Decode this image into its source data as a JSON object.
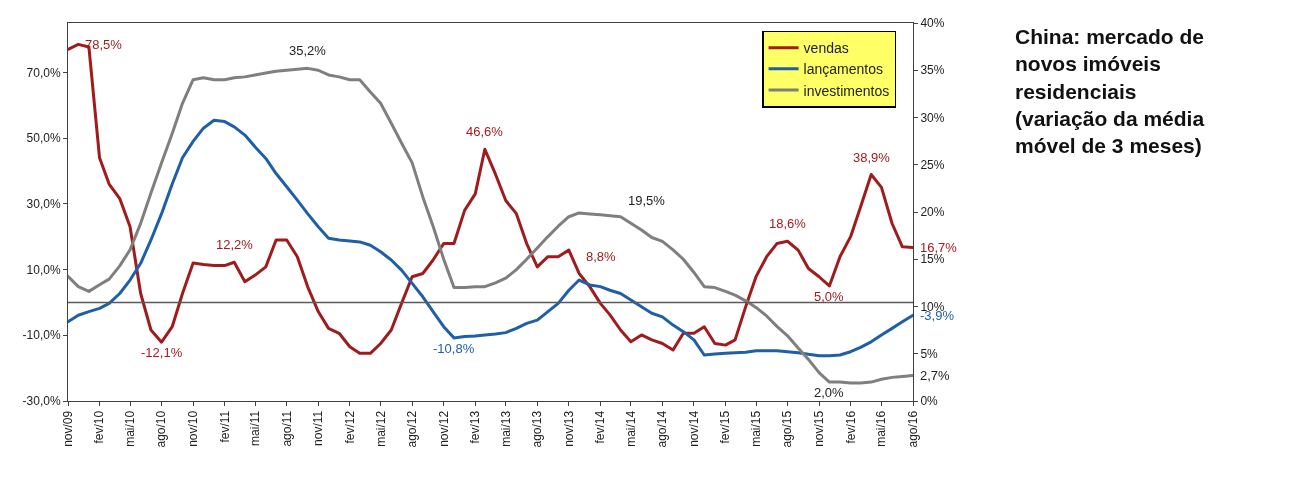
{
  "chart_data": {
    "type": "line",
    "title": "China: mercado de novos imóveis residenciais (variação da média móvel de 3 meses)",
    "x": [
      "2009-11",
      "2009-12",
      "2010-01",
      "2010-02",
      "2010-03",
      "2010-04",
      "2010-05",
      "2010-06",
      "2010-07",
      "2010-08",
      "2010-09",
      "2010-10",
      "2010-11",
      "2010-12",
      "2011-01",
      "2011-02",
      "2011-03",
      "2011-04",
      "2011-05",
      "2011-06",
      "2011-07",
      "2011-08",
      "2011-09",
      "2011-10",
      "2011-11",
      "2011-12",
      "2012-01",
      "2012-02",
      "2012-03",
      "2012-04",
      "2012-05",
      "2012-06",
      "2012-07",
      "2012-08",
      "2012-09",
      "2012-10",
      "2012-11",
      "2012-12",
      "2013-01",
      "2013-02",
      "2013-03",
      "2013-04",
      "2013-05",
      "2013-06",
      "2013-07",
      "2013-08",
      "2013-09",
      "2013-10",
      "2013-11",
      "2013-12",
      "2014-01",
      "2014-02",
      "2014-03",
      "2014-04",
      "2014-05",
      "2014-06",
      "2014-07",
      "2014-08",
      "2014-09",
      "2014-10",
      "2014-11",
      "2014-12",
      "2015-01",
      "2015-02",
      "2015-03",
      "2015-04",
      "2015-05",
      "2015-06",
      "2015-07",
      "2015-08",
      "2015-09",
      "2015-10",
      "2015-11",
      "2015-12",
      "2016-01",
      "2016-02",
      "2016-03",
      "2016-04",
      "2016-05",
      "2016-06",
      "2016-07",
      "2016-08"
    ],
    "series": [
      {
        "name": "vendas",
        "color": "#a01c1c",
        "values": [
          77,
          78.5,
          77.7,
          44,
          36,
          31.6,
          23,
          2.7,
          -8.4,
          -12.1,
          -7.4,
          2.7,
          12,
          11.5,
          11.2,
          11.2,
          12.2,
          6.3,
          8.3,
          10.8,
          19,
          19,
          13.9,
          4.8,
          -2.8,
          -7.9,
          -9.4,
          -13.5,
          -15.5,
          -15.5,
          -12.5,
          -8.4,
          -0.3,
          7.8,
          8.8,
          12.9,
          17.9,
          17.9,
          28,
          33,
          46.6,
          39,
          31,
          27,
          17.9,
          10.8,
          13.9,
          13.9,
          15.9,
          8.8,
          4.8,
          -0.3,
          -3.8,
          -8.4,
          -12,
          -9.9,
          -11.4,
          -12.5,
          -14.5,
          -9.4,
          -9.4,
          -7.4,
          -12.5,
          -13,
          -11.4,
          -1.3,
          7.8,
          13.9,
          17.9,
          18.6,
          15.9,
          10.3,
          7.8,
          5.0,
          13.9,
          20,
          29,
          38.9,
          35,
          24,
          16.9,
          16.7
        ],
        "value_labels": [
          null,
          "78,5%",
          null,
          null,
          null,
          null,
          null,
          null,
          null,
          "-12,1%",
          null,
          null,
          null,
          null,
          null,
          null,
          "12,2%",
          null,
          null,
          null,
          null,
          null,
          null,
          null,
          null,
          null,
          null,
          null,
          null,
          null,
          null,
          null,
          null,
          null,
          null,
          null,
          null,
          null,
          null,
          null,
          "46,6%",
          null,
          null,
          null,
          null,
          null,
          null,
          null,
          null,
          "8,8%",
          null,
          null,
          null,
          null,
          null,
          null,
          null,
          null,
          null,
          null,
          null,
          null,
          null,
          null,
          null,
          null,
          null,
          null,
          null,
          "18,6%",
          null,
          null,
          null,
          "5,0%",
          null,
          null,
          null,
          "38,9%",
          null,
          null,
          null,
          "16,7%"
        ]
      },
      {
        "name": "lançamentos",
        "color": "#1f5fa8",
        "values": [
          -5.9,
          -3.9,
          -2.8,
          -1.8,
          -0.3,
          2.7,
          6.8,
          11.9,
          19,
          27,
          36,
          44,
          49,
          53,
          55.4,
          55,
          53.4,
          50.9,
          47.3,
          43.8,
          39.2,
          35.2,
          31.1,
          27,
          23,
          19.5,
          19,
          18.7,
          18.4,
          17.4,
          15.4,
          12.9,
          9.8,
          5.8,
          1.7,
          -2.8,
          -7.4,
          -10.8,
          -10.4,
          -10.2,
          -9.9,
          -9.6,
          -9.2,
          -7.9,
          -6.4,
          -5.4,
          -2.8,
          -0.3,
          3.7,
          6.8,
          5.3,
          4.8,
          3.7,
          2.7,
          0.7,
          -1.3,
          -3.3,
          -4.4,
          -6.9,
          -8.9,
          -11.4,
          -16,
          -15.7,
          -15.5,
          -15.3,
          -15.2,
          -14.7,
          -14.7,
          -14.7,
          -15,
          -15.3,
          -15.8,
          -16.2,
          -16.2,
          -16,
          -15,
          -13.7,
          -12,
          -9.9,
          -7.9,
          -5.9,
          -3.9
        ],
        "value_labels": [
          null,
          null,
          null,
          null,
          null,
          null,
          null,
          null,
          null,
          null,
          null,
          null,
          null,
          null,
          null,
          null,
          null,
          null,
          null,
          null,
          null,
          null,
          null,
          null,
          null,
          null,
          null,
          null,
          null,
          null,
          null,
          null,
          null,
          null,
          null,
          null,
          null,
          "-10,8%",
          null,
          null,
          null,
          null,
          null,
          null,
          null,
          null,
          null,
          null,
          null,
          null,
          null,
          null,
          null,
          null,
          null,
          null,
          null,
          null,
          null,
          null,
          null,
          null,
          null,
          null,
          null,
          null,
          null,
          null,
          null,
          null,
          null,
          null,
          null,
          null,
          null,
          null,
          null,
          null,
          null,
          null,
          null,
          "-3,9%"
        ]
      },
      {
        "name": "investimentos",
        "color": "#7f7f7f",
        "axis": "y2",
        "values": [
          13.2,
          12.1,
          11.6,
          12.3,
          12.9,
          14.3,
          16,
          18.8,
          22,
          25.2,
          28.3,
          31.5,
          34,
          34.2,
          34,
          34,
          34.2,
          34.3,
          34.5,
          34.7,
          34.9,
          35.0,
          35.1,
          35.2,
          35.0,
          34.5,
          34.3,
          34,
          34,
          32.7,
          31.5,
          29.4,
          27.3,
          25.2,
          21.6,
          18.5,
          15,
          12,
          12,
          12.1,
          12.1,
          12.5,
          13,
          13.9,
          15,
          16.2,
          17.4,
          18.5,
          19.5,
          19.9,
          19.8,
          19.7,
          19.6,
          19.5,
          18.8,
          18.1,
          17.3,
          16.9,
          16,
          15,
          13.6,
          12.1,
          12,
          11.6,
          11.2,
          10.6,
          9.9,
          9,
          7.9,
          6.9,
          5.6,
          4.4,
          3,
          2.0,
          2.0,
          1.9,
          1.9,
          2.0,
          2.3,
          2.5,
          2.6,
          2.7
        ],
        "value_labels": [
          null,
          null,
          null,
          null,
          null,
          null,
          null,
          null,
          null,
          null,
          null,
          null,
          null,
          null,
          null,
          null,
          null,
          null,
          null,
          null,
          null,
          null,
          null,
          "35,2%",
          null,
          null,
          null,
          null,
          null,
          null,
          null,
          null,
          null,
          null,
          null,
          null,
          null,
          null,
          null,
          null,
          null,
          null,
          null,
          null,
          null,
          null,
          null,
          null,
          null,
          null,
          null,
          null,
          null,
          "19,5%",
          null,
          null,
          null,
          null,
          null,
          null,
          null,
          null,
          null,
          null,
          null,
          null,
          null,
          null,
          null,
          null,
          null,
          null,
          null,
          "2,0%",
          null,
          null,
          null,
          null,
          null,
          null,
          null,
          "2,7%"
        ]
      }
    ],
    "xlim": [
      "2009-11",
      "2016-08"
    ],
    "xticks": [
      {
        "value": "2009-11",
        "label": "nov/09"
      },
      {
        "value": "2010-02",
        "label": "fev/10"
      },
      {
        "value": "2010-05",
        "label": "mai/10"
      },
      {
        "value": "2010-08",
        "label": "ago/10"
      },
      {
        "value": "2010-11",
        "label": "nov/10"
      },
      {
        "value": "2011-02",
        "label": "fev/11"
      },
      {
        "value": "2011-05",
        "label": "mai/11"
      },
      {
        "value": "2011-08",
        "label": "ago/11"
      },
      {
        "value": "2011-11",
        "label": "nov/11"
      },
      {
        "value": "2012-02",
        "label": "fev/12"
      },
      {
        "value": "2012-05",
        "label": "mai/12"
      },
      {
        "value": "2012-08",
        "label": "ago/12"
      },
      {
        "value": "2012-11",
        "label": "nov/12"
      },
      {
        "value": "2013-02",
        "label": "fev/13"
      },
      {
        "value": "2013-05",
        "label": "mai/13"
      },
      {
        "value": "2013-08",
        "label": "ago/13"
      },
      {
        "value": "2013-11",
        "label": "nov/13"
      },
      {
        "value": "2014-02",
        "label": "fev/14"
      },
      {
        "value": "2014-05",
        "label": "mai/14"
      },
      {
        "value": "2014-08",
        "label": "ago/14"
      },
      {
        "value": "2014-11",
        "label": "nov/14"
      },
      {
        "value": "2015-02",
        "label": "fev/15"
      },
      {
        "value": "2015-05",
        "label": "mai/15"
      },
      {
        "value": "2015-08",
        "label": "ago/15"
      },
      {
        "value": "2015-11",
        "label": "nov/15"
      },
      {
        "value": "2016-02",
        "label": "fev/16"
      },
      {
        "value": "2016-05",
        "label": "mai/16"
      },
      {
        "value": "2016-08",
        "label": "ago/16"
      }
    ],
    "ylim": [
      -30,
      85
    ],
    "yticks": [
      {
        "value": -30,
        "label": "-30,0%"
      },
      {
        "value": -10,
        "label": "-10,0%"
      },
      {
        "value": 10,
        "label": "10,0%"
      },
      {
        "value": 30,
        "label": "30,0%"
      },
      {
        "value": 50,
        "label": "50,0%"
      },
      {
        "value": 70,
        "label": "70,0%"
      }
    ],
    "y2lim": [
      0,
      40
    ],
    "y2ticks": [
      {
        "value": 0,
        "label": "0%"
      },
      {
        "value": 5,
        "label": "5%"
      },
      {
        "value": 10,
        "label": "10%"
      },
      {
        "value": 15,
        "label": "15%"
      },
      {
        "value": 20,
        "label": "20%"
      },
      {
        "value": 25,
        "label": "25%"
      },
      {
        "value": 30,
        "label": "30%"
      },
      {
        "value": 35,
        "label": "35%"
      },
      {
        "value": 40,
        "label": "40%"
      }
    ],
    "ref_lines": [
      {
        "axis": "y",
        "value": 0,
        "color": "#595959"
      }
    ],
    "legend": "top right",
    "line_style": "solid",
    "marker": "none"
  }
}
